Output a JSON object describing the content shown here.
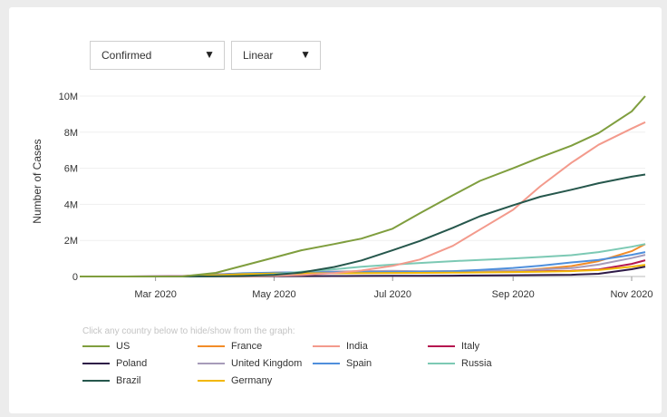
{
  "controls": {
    "metric_label": "Confirmed",
    "scale_label": "Linear",
    "arrow_glyph": "▼"
  },
  "legend_hint": "Click any country below to hide/show from the graph:",
  "chart_data": {
    "type": "line",
    "xlabel": "",
    "ylabel": "Number of Cases",
    "x_ticks": [
      "Mar 2020",
      "May 2020",
      "Jul 2020",
      "Sep 2020",
      "Nov 2020"
    ],
    "y_ticks": [
      "0",
      "2M",
      "4M",
      "6M",
      "8M",
      "10M"
    ],
    "ylim": [
      0,
      10500000
    ],
    "x": [
      "2020-01-22",
      "2020-02-15",
      "2020-03-15",
      "2020-04-01",
      "2020-04-15",
      "2020-05-01",
      "2020-05-15",
      "2020-06-01",
      "2020-06-15",
      "2020-07-01",
      "2020-07-15",
      "2020-08-01",
      "2020-08-15",
      "2020-09-01",
      "2020-09-15",
      "2020-10-01",
      "2020-10-15",
      "2020-11-01",
      "2020-11-08"
    ],
    "series": [
      {
        "name": "US",
        "color": "#7f9e3e",
        "values": [
          0,
          0,
          3000,
          200000,
          600000,
          1050000,
          1450000,
          1800000,
          2100000,
          2650000,
          3500000,
          4500000,
          5300000,
          6000000,
          6600000,
          7250000,
          7950000,
          9150000,
          10000000
        ]
      },
      {
        "name": "France",
        "color": "#f28c28",
        "values": [
          0,
          0,
          5000,
          55000,
          130000,
          165000,
          180000,
          190000,
          195000,
          200000,
          210000,
          225000,
          250000,
          300000,
          420000,
          580000,
          850000,
          1400000,
          1800000
        ]
      },
      {
        "name": "India",
        "color": "#f39a8c",
        "values": [
          0,
          0,
          100,
          2000,
          12000,
          35000,
          82000,
          190000,
          330000,
          590000,
          940000,
          1700000,
          2600000,
          3700000,
          5000000,
          6300000,
          7300000,
          8200000,
          8550000
        ]
      },
      {
        "name": "Italy",
        "color": "#b5174f",
        "values": [
          0,
          0,
          25000,
          110000,
          165000,
          205000,
          224000,
          233000,
          237000,
          241000,
          243000,
          248000,
          253000,
          270000,
          290000,
          315000,
          390000,
          700000,
          900000
        ]
      },
      {
        "name": "Poland",
        "color": "#2e1a47",
        "values": [
          0,
          0,
          100,
          2500,
          7500,
          13000,
          18000,
          24000,
          30000,
          35000,
          40000,
          47000,
          57000,
          68000,
          78000,
          95000,
          150000,
          400000,
          550000
        ]
      },
      {
        "name": "United Kingdom",
        "color": "#a79bb9",
        "values": [
          0,
          0,
          1500,
          30000,
          100000,
          170000,
          235000,
          275000,
          298000,
          315000,
          292000,
          303000,
          315000,
          340000,
          380000,
          460000,
          660000,
          1020000,
          1200000
        ]
      },
      {
        "name": "Spain",
        "color": "#4f8fdc",
        "values": [
          0,
          0,
          8000,
          100000,
          180000,
          215000,
          230000,
          240000,
          245000,
          250000,
          260000,
          290000,
          360000,
          470000,
          600000,
          780000,
          920000,
          1200000,
          1350000
        ]
      },
      {
        "name": "Russia",
        "color": "#7cc9b4",
        "values": [
          0,
          0,
          100,
          3000,
          24000,
          115000,
          260000,
          400000,
          540000,
          660000,
          750000,
          850000,
          920000,
          1000000,
          1080000,
          1180000,
          1350000,
          1650000,
          1800000
        ]
      },
      {
        "name": "Brazil",
        "color": "#26574c",
        "values": [
          0,
          0,
          200,
          6800,
          28000,
          88000,
          220000,
          526000,
          890000,
          1450000,
          1970000,
          2700000,
          3340000,
          3950000,
          4420000,
          4810000,
          5170000,
          5530000,
          5650000
        ]
      },
      {
        "name": "Germany",
        "color": "#f2b705",
        "values": [
          0,
          0,
          6000,
          75000,
          132000,
          163000,
          174000,
          182000,
          187000,
          195000,
          200000,
          210000,
          225000,
          245000,
          265000,
          295000,
          355000,
          540000,
          650000
        ]
      }
    ]
  }
}
